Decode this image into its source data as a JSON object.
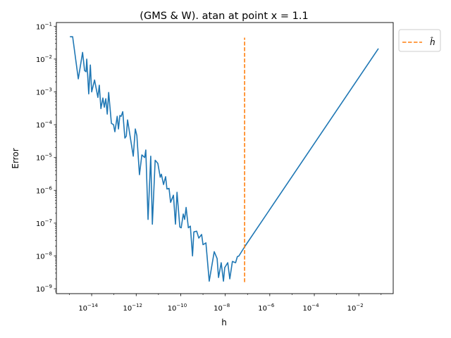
{
  "chart_data": {
    "type": "line",
    "title": "(GMS & W). atan at point x = 1.1",
    "xlabel": "h",
    "ylabel": "Error",
    "xscale": "log",
    "yscale": "log",
    "xlim": [
      2.6e-16,
      0.35
    ],
    "ylim": [
      7.1e-10,
      0.13
    ],
    "grid": false,
    "legend_position": "outside-top-right",
    "x_ticks": [
      {
        "value": 1e-14,
        "base": "10",
        "exp": "−14"
      },
      {
        "value": 1e-12,
        "base": "10",
        "exp": "−12"
      },
      {
        "value": 1e-10,
        "base": "10",
        "exp": "−10"
      },
      {
        "value": 1e-08,
        "base": "10",
        "exp": "−8"
      },
      {
        "value": 1e-06,
        "base": "10",
        "exp": "−6"
      },
      {
        "value": 0.0001,
        "base": "10",
        "exp": "−4"
      },
      {
        "value": 0.01,
        "base": "10",
        "exp": "−2"
      }
    ],
    "y_ticks": [
      {
        "value": 1e-09,
        "base": "10",
        "exp": "−9"
      },
      {
        "value": 1e-08,
        "base": "10",
        "exp": "−8"
      },
      {
        "value": 1e-07,
        "base": "10",
        "exp": "−7"
      },
      {
        "value": 1e-06,
        "base": "10",
        "exp": "−6"
      },
      {
        "value": 1e-05,
        "base": "10",
        "exp": "−5"
      },
      {
        "value": 0.0001,
        "base": "10",
        "exp": "−4"
      },
      {
        "value": 0.001,
        "base": "10",
        "exp": "−3"
      },
      {
        "value": 0.01,
        "base": "10",
        "exp": "−2"
      },
      {
        "value": 0.1,
        "base": "10",
        "exp": "−1"
      }
    ],
    "series": [
      {
        "color": "#1f77b4",
        "style": "solid",
        "x": [
          1.05e-15,
          1.4e-15,
          2.5e-15,
          3.9e-15,
          4.8e-15,
          5.6e-15,
          6e-15,
          7.4e-15,
          8.7e-15,
          1e-14,
          1.35e-14,
          1.9e-14,
          2.2e-14,
          2.6e-14,
          3.2e-14,
          3.7e-14,
          4.3e-14,
          5e-14,
          5.8e-14,
          7.7e-14,
          9.6e-14,
          1.1e-13,
          1.4e-13,
          1.6e-13,
          1.85e-13,
          2.1e-13,
          2.5e-13,
          3.1e-13,
          3.6e-13,
          4.1e-13,
          7.4e-13,
          9.1e-13,
          1.07e-12,
          1.4e-12,
          1.8e-12,
          2.4e-12,
          2.7e-12,
          3.4e-12,
          4.5e-12,
          5.3e-12,
          7.1e-12,
          9.4e-12,
          1.2e-11,
          1.35e-11,
          1.7e-11,
          2.1e-11,
          2.4e-11,
          3e-11,
          3.5e-11,
          4.7e-11,
          5.8e-11,
          6.8e-11,
          9.1e-11,
          1.05e-10,
          1.3e-10,
          1.5e-10,
          1.75e-10,
          2.2e-10,
          2.7e-10,
          3.4e-10,
          3.9e-10,
          5.2e-10,
          6.5e-10,
          8.7e-10,
          1e-09,
          1.35e-09,
          1.9e-09,
          3.2e-09,
          4.3e-09,
          5e-09,
          6.6e-09,
          8.3e-09,
          9.5e-09,
          1.3e-08,
          1.6e-08,
          2.1e-08,
          2.9e-08,
          3.5e-08,
          4.1e-08,
          7.4e-08,
          0.076
        ],
        "y": [
          0.048,
          0.048,
          0.0025,
          0.016,
          0.0045,
          0.0041,
          0.01,
          0.00087,
          0.0066,
          0.001,
          0.0023,
          0.00068,
          0.0016,
          0.00031,
          0.00065,
          0.00034,
          0.00062,
          0.00021,
          0.00096,
          0.00011,
          0.0001,
          6.1e-05,
          0.00018,
          7.4e-05,
          0.00019,
          0.00018,
          0.00025,
          3.9e-05,
          4.5e-05,
          0.00014,
          1.1e-05,
          7.4e-05,
          4.7e-05,
          3e-06,
          1.2e-05,
          1e-05,
          1.7e-05,
          1.3e-07,
          1.1e-05,
          9.3e-08,
          8.3e-06,
          6.6e-06,
          2.5e-06,
          3.1e-06,
          1.5e-06,
          2.6e-06,
          1.1e-06,
          1.15e-06,
          4.3e-07,
          7.1e-07,
          9.3e-08,
          8.7e-07,
          7.6e-08,
          7.2e-08,
          1.9e-07,
          1.3e-07,
          3e-07,
          7.2e-08,
          8.1e-08,
          1e-08,
          5.4e-08,
          5.7e-08,
          3.5e-08,
          4.5e-08,
          2.2e-08,
          2.5e-08,
          1.7e-09,
          1.35e-08,
          8.3e-09,
          2.2e-09,
          6.2e-09,
          1.7e-09,
          4.4e-09,
          6.2e-09,
          2e-09,
          6.8e-09,
          6.2e-09,
          9.5e-09,
          1e-08,
          1.9e-08,
          0.021
        ]
      },
      {
        "name": "ĥ",
        "color": "#ff7f0e",
        "style": "dashed",
        "x": [
          7.4e-08,
          7.4e-08
        ],
        "y": [
          1.6e-09,
          0.045
        ]
      }
    ]
  }
}
